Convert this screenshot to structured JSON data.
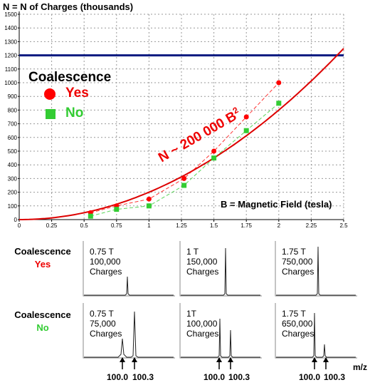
{
  "chart_data": {
    "type": "scatter",
    "ylabel": "N = N of Charges (thousands)",
    "xlabel": "B = Magnetic Field (tesla)",
    "x_ticks": [
      0,
      0.25,
      0.5,
      0.75,
      1,
      1.25,
      1.5,
      1.75,
      2,
      2.25,
      2.5
    ],
    "y_ticks": [
      0,
      100,
      200,
      300,
      400,
      500,
      600,
      700,
      800,
      900,
      1000,
      1100,
      1200,
      1300,
      1400,
      1500
    ],
    "xlim": [
      0,
      2.5
    ],
    "ylim": [
      0,
      1500
    ],
    "grid": true,
    "legend_title": "Coalescence",
    "legend_position": "upper-left",
    "series": [
      {
        "name": "Yes",
        "color": "#ff0000",
        "marker": "circle",
        "x": [
          0.55,
          0.75,
          1.0,
          1.27,
          1.5,
          1.75,
          2.0
        ],
        "y": [
          50,
          100,
          150,
          300,
          500,
          750,
          1000
        ]
      },
      {
        "name": "No",
        "color": "#33cc33",
        "marker": "square",
        "x": [
          0.55,
          0.75,
          1.0,
          1.27,
          1.5,
          1.75,
          2.0
        ],
        "y": [
          25,
          75,
          100,
          250,
          450,
          650,
          850
        ]
      }
    ],
    "fit_curve": {
      "label": "N ~ 200 000 B",
      "exponent_label": "2",
      "coefficient": 200,
      "power": 2,
      "color": "#dd0000"
    },
    "hline": {
      "y": 1200,
      "color": "#0a1a80"
    }
  },
  "spectra": {
    "row_title": "Coalescence",
    "yes_label": "Yes",
    "no_label": "No",
    "mz_label": "m/z",
    "mz_ticks": [
      "100.0",
      "100.3"
    ],
    "yes_panels": [
      {
        "field": "0.75 T",
        "count": "100,000",
        "unit": "Charges"
      },
      {
        "field": "1 T",
        "count": "150,000",
        "unit": "Charges"
      },
      {
        "field": "1.75 T",
        "count": "750,000",
        "unit": "Charges"
      }
    ],
    "no_panels": [
      {
        "field": "0.75 T",
        "count": "75,000",
        "unit": "Charges"
      },
      {
        "field": "1T",
        "count": "100,000",
        "unit": "Charges"
      },
      {
        "field": "1.75 T",
        "count": "650,000",
        "unit": "Charges"
      }
    ]
  }
}
